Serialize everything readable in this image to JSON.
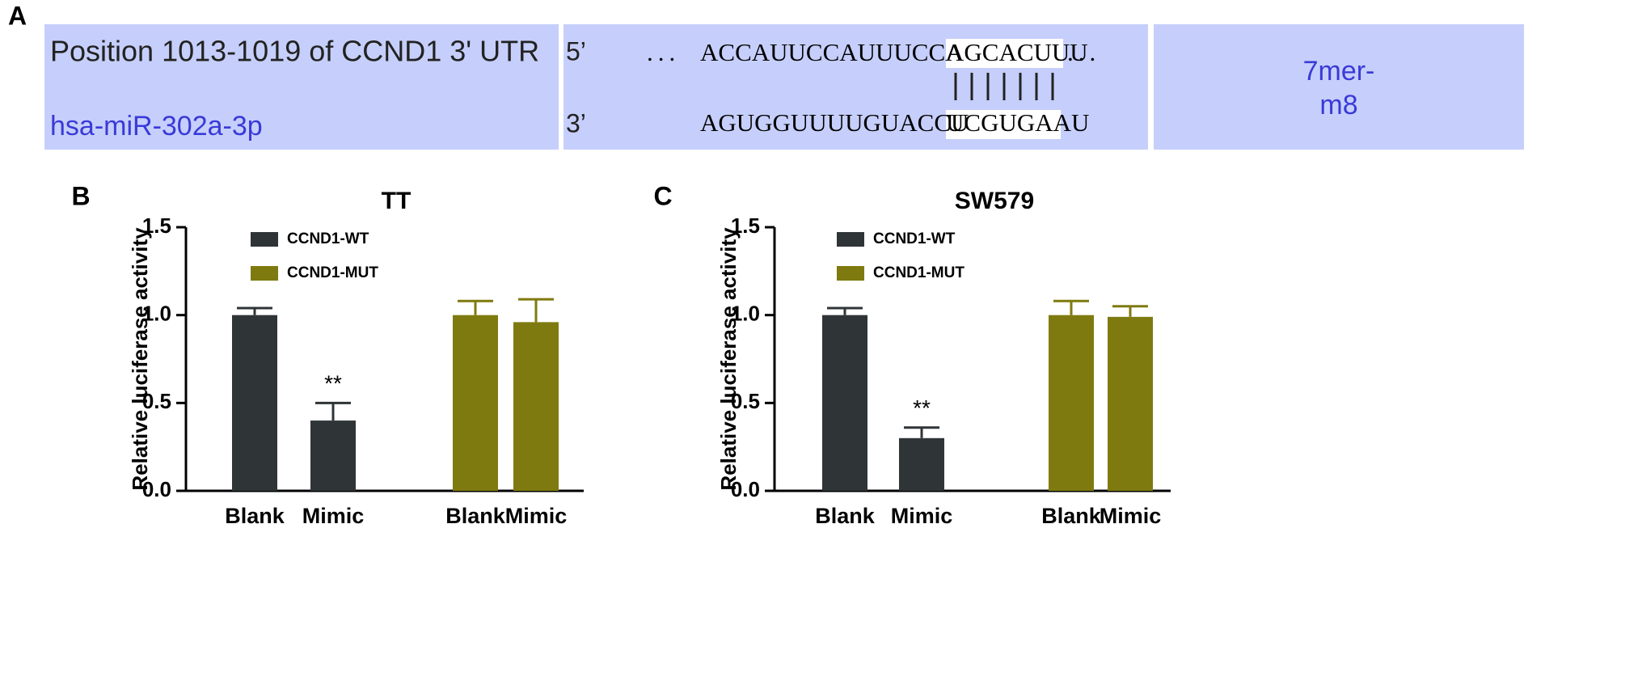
{
  "panel_a": {
    "label": "A",
    "site": "Position 1013-1019 of CCND1 3' UTR",
    "mirna": "hsa-miR-302a-3p",
    "utr_end": "5’",
    "mir_end": "3’",
    "utr_seq": [
      "...",
      "ACCAUUCCAUUUCCA",
      "AGCACUUU",
      "..."
    ],
    "mir_seq": [
      "AGUGGUUUUGUACCU",
      "UCGUGAAU"
    ],
    "site_type": [
      "7mer-",
      "m8"
    ]
  },
  "chart_data": [
    {
      "panel": "B",
      "type": "bar",
      "title": "TT",
      "ylabel": "Relative luciferase activity",
      "categories": [
        "Blank",
        "Mimic",
        "Blank",
        "Mimic"
      ],
      "series": [
        {
          "name": "CCND1-WT",
          "color": "#2f3437",
          "values": [
            1.0,
            0.4,
            null,
            null
          ],
          "errors": [
            0.04,
            0.1,
            null,
            null
          ],
          "significance": [
            null,
            "**",
            null,
            null
          ]
        },
        {
          "name": "CCND1-MUT",
          "color": "#7f7a0f",
          "values": [
            null,
            null,
            1.0,
            0.96
          ],
          "errors": [
            null,
            null,
            0.08,
            0.13
          ]
        }
      ],
      "ylim": [
        0,
        1.5
      ],
      "yticks": [
        {
          "value": 0,
          "label": "0.0"
        },
        0.5,
        {
          "value": 1,
          "label": "1.0"
        },
        1.5
      ]
    },
    {
      "panel": "C",
      "type": "bar",
      "title": "SW579",
      "ylabel": "Relative luciferase activity",
      "categories": [
        "Blank",
        "Mimic",
        "Blank",
        "Mimic"
      ],
      "series": [
        {
          "name": "CCND1-WT",
          "color": "#2f3437",
          "values": [
            1.0,
            0.3,
            null,
            null
          ],
          "errors": [
            0.04,
            0.06,
            null,
            null
          ],
          "significance": [
            null,
            "**",
            null,
            null
          ]
        },
        {
          "name": "CCND1-MUT",
          "color": "#7f7a0f",
          "values": [
            null,
            null,
            1.0,
            0.99
          ],
          "errors": [
            null,
            null,
            0.08,
            0.06
          ]
        }
      ],
      "ylim": [
        0,
        1.5
      ],
      "yticks": [
        {
          "value": 0,
          "label": "0.0"
        },
        0.5,
        {
          "value": 1,
          "label": "1.0"
        },
        1.5
      ]
    }
  ]
}
